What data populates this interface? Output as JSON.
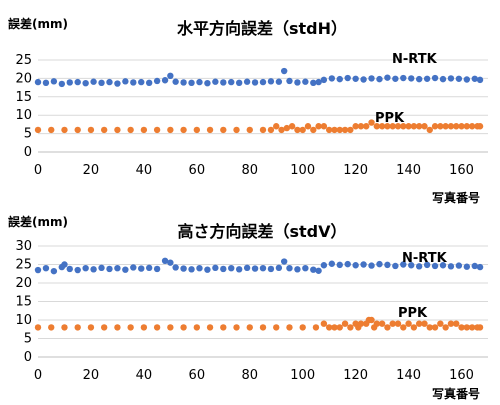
{
  "chart_data": [
    {
      "type": "scatter",
      "title": "水平方向誤差（stdH）",
      "ylabel": "誤差(mm)",
      "xlabel": "写真番号",
      "xlim": [
        0,
        170
      ],
      "ylim": [
        0,
        25
      ],
      "xticks": [
        "0",
        "20",
        "40",
        "60",
        "80",
        "100",
        "120",
        "140",
        "160"
      ],
      "yticks": [
        "0",
        "5",
        "10",
        "15",
        "20",
        "25"
      ],
      "grid": true,
      "series": [
        {
          "name": "N-RTK",
          "color": "#4472C4",
          "x": [
            0,
            3,
            6,
            9,
            12,
            15,
            18,
            21,
            24,
            27,
            30,
            33,
            36,
            39,
            42,
            45,
            48,
            50,
            52,
            55,
            58,
            61,
            64,
            67,
            70,
            73,
            76,
            79,
            82,
            85,
            88,
            91,
            93,
            95,
            98,
            101,
            104,
            106,
            108,
            111,
            114,
            117,
            120,
            123,
            126,
            129,
            132,
            135,
            138,
            141,
            144,
            147,
            150,
            153,
            156,
            159,
            162,
            165,
            167
          ],
          "y": [
            19,
            18.8,
            19.2,
            18.5,
            18.9,
            19,
            18.7,
            19.1,
            18.8,
            19,
            18.6,
            19.2,
            18.9,
            19,
            18.8,
            19.3,
            19.5,
            20.7,
            19.1,
            18.9,
            18.8,
            19,
            18.7,
            19.1,
            18.9,
            19,
            18.8,
            19.1,
            18.9,
            19,
            19.2,
            19.1,
            22,
            19.3,
            18.9,
            19.1,
            18.8,
            19,
            19.6,
            20,
            19.8,
            20.1,
            19.9,
            19.7,
            20,
            19.8,
            20.2,
            19.9,
            20.1,
            20,
            19.8,
            19.9,
            20.1,
            19.8,
            20,
            19.9,
            19.7,
            19.9,
            19.6
          ]
        },
        {
          "name": "PPK",
          "color": "#ED7D31",
          "x": [
            0,
            5,
            10,
            15,
            20,
            25,
            30,
            35,
            40,
            45,
            50,
            55,
            60,
            65,
            70,
            75,
            80,
            85,
            88,
            90,
            92,
            94,
            96,
            98,
            100,
            102,
            104,
            106,
            108,
            110,
            112,
            114,
            116,
            118,
            120,
            122,
            124,
            126,
            128,
            130,
            132,
            134,
            136,
            138,
            140,
            142,
            144,
            146,
            148,
            150,
            152,
            154,
            156,
            158,
            160,
            162,
            164,
            166,
            167
          ],
          "y": [
            6,
            6,
            6,
            6,
            6,
            6,
            6,
            6,
            6,
            6,
            6,
            6,
            6,
            6,
            6,
            6,
            6,
            6,
            6,
            7,
            6,
            6.5,
            7,
            6,
            6,
            7,
            6,
            7,
            7,
            6,
            6,
            6,
            6,
            6,
            7,
            7,
            7,
            8,
            7,
            7,
            7,
            7,
            7,
            7,
            7,
            7,
            7,
            7,
            6,
            7,
            7,
            7,
            7,
            7,
            7,
            7,
            7,
            7,
            7
          ]
        }
      ]
    },
    {
      "type": "scatter",
      "title": "高さ方向誤差（stdV）",
      "ylabel": "誤差(mm)",
      "xlabel": "写真番号",
      "xlim": [
        0,
        170
      ],
      "ylim": [
        0,
        30
      ],
      "xticks": [
        "0",
        "20",
        "40",
        "60",
        "80",
        "100",
        "120",
        "140",
        "160"
      ],
      "yticks": [
        "0",
        "5",
        "10",
        "15",
        "20",
        "25",
        "30"
      ],
      "grid": true,
      "series": [
        {
          "name": "N-RTK",
          "color": "#4472C4",
          "x": [
            0,
            3,
            6,
            9,
            10,
            12,
            15,
            18,
            21,
            24,
            27,
            30,
            33,
            36,
            39,
            42,
            45,
            48,
            50,
            52,
            55,
            58,
            61,
            64,
            67,
            70,
            73,
            76,
            79,
            82,
            85,
            88,
            91,
            93,
            95,
            98,
            101,
            104,
            106,
            108,
            111,
            114,
            117,
            120,
            123,
            126,
            129,
            132,
            135,
            138,
            141,
            144,
            147,
            150,
            153,
            156,
            159,
            162,
            165,
            167
          ],
          "y": [
            23.5,
            24,
            23.2,
            24.3,
            25,
            23.8,
            23.5,
            24,
            23.7,
            24.1,
            23.8,
            24,
            23.6,
            24.2,
            23.9,
            24.1,
            23.8,
            26,
            25.5,
            24.2,
            23.9,
            23.7,
            24,
            23.6,
            24.1,
            23.8,
            24,
            23.7,
            24.1,
            23.9,
            24,
            23.8,
            24.1,
            25.8,
            24,
            23.7,
            24,
            23.6,
            23.3,
            24.8,
            25.2,
            24.9,
            25.1,
            24.8,
            25,
            24.7,
            25.1,
            24.9,
            24.6,
            25,
            24.8,
            24.5,
            24.9,
            24.6,
            24.8,
            24.5,
            24.7,
            24.4,
            24.6,
            24.3
          ]
        },
        {
          "name": "PPK",
          "color": "#ED7D31",
          "x": [
            0,
            5,
            10,
            15,
            20,
            25,
            30,
            35,
            40,
            45,
            50,
            55,
            60,
            65,
            70,
            75,
            80,
            85,
            90,
            95,
            100,
            105,
            108,
            110,
            112,
            114,
            116,
            118,
            120,
            121,
            122,
            124,
            125,
            126,
            127,
            128,
            130,
            132,
            134,
            136,
            138,
            140,
            142,
            144,
            146,
            148,
            150,
            152,
            154,
            156,
            158,
            160,
            162,
            164,
            166,
            167
          ],
          "y": [
            8,
            8,
            8,
            8,
            8,
            8,
            8,
            8,
            8,
            8,
            8,
            8,
            8,
            8,
            8,
            8,
            8,
            8,
            8,
            8,
            8,
            8,
            9,
            8,
            8,
            8,
            9,
            8,
            9,
            8,
            9,
            9,
            10,
            10,
            8,
            9,
            9,
            8,
            9,
            9,
            8,
            9,
            8,
            9,
            9,
            8,
            8,
            9,
            8,
            9,
            9,
            8,
            8,
            8,
            8,
            8
          ]
        }
      ]
    }
  ]
}
